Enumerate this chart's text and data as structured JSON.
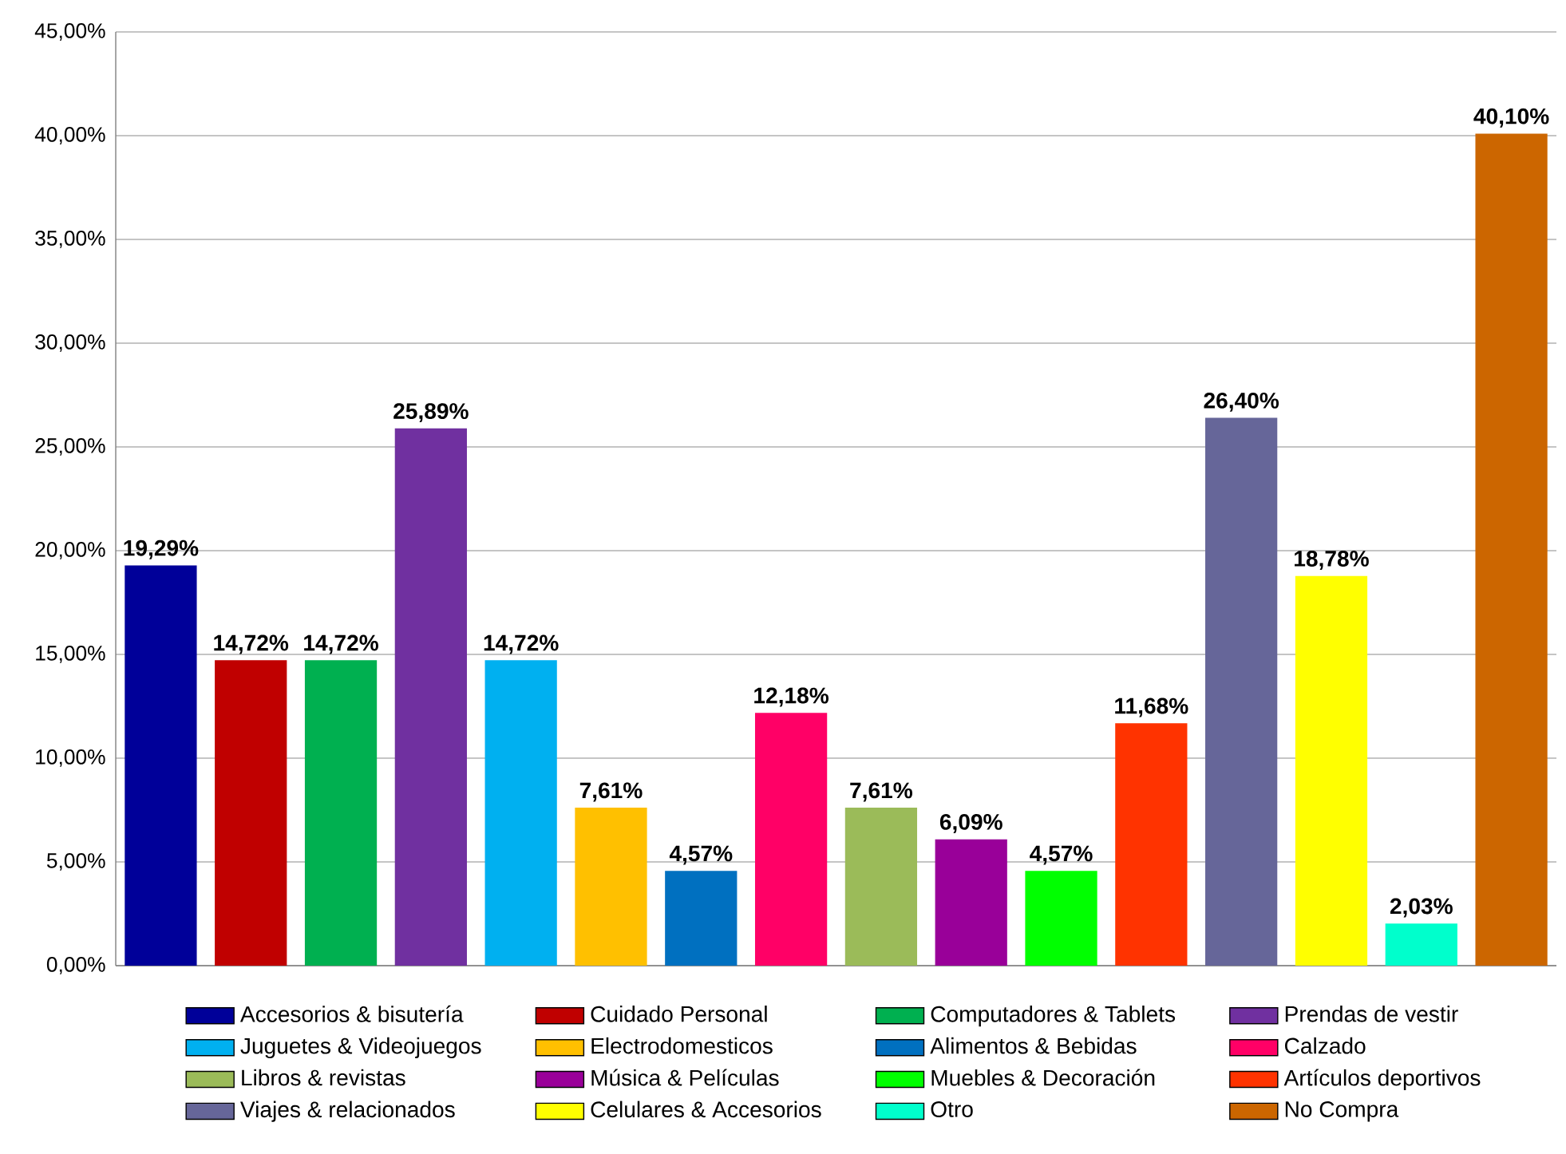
{
  "chart_data": {
    "type": "bar",
    "categories": [
      null,
      null,
      null,
      null,
      null,
      null,
      null,
      null,
      null,
      null,
      null,
      null,
      null,
      null,
      null,
      null
    ],
    "series": [
      {
        "name": "Accesorios & bisutería",
        "color": "#000099",
        "values": [
          19.29,
          null,
          null,
          null,
          null,
          null,
          null,
          null,
          null,
          null,
          null,
          null,
          null,
          null,
          null,
          null
        ],
        "value_labels": [
          "19,29%",
          null,
          null,
          null,
          null,
          null,
          null,
          null,
          null,
          null,
          null,
          null,
          null,
          null,
          null,
          null
        ]
      },
      {
        "name": "Cuidado Personal",
        "color": "#c00000",
        "values": [
          null,
          14.72,
          null,
          null,
          null,
          null,
          null,
          null,
          null,
          null,
          null,
          null,
          null,
          null,
          null,
          null
        ],
        "value_labels": [
          null,
          "14,72%",
          null,
          null,
          null,
          null,
          null,
          null,
          null,
          null,
          null,
          null,
          null,
          null,
          null,
          null
        ]
      },
      {
        "name": "Computadores & Tablets",
        "color": "#00b050",
        "values": [
          null,
          null,
          14.72,
          null,
          null,
          null,
          null,
          null,
          null,
          null,
          null,
          null,
          null,
          null,
          null,
          null
        ],
        "value_labels": [
          null,
          null,
          "14,72%",
          null,
          null,
          null,
          null,
          null,
          null,
          null,
          null,
          null,
          null,
          null,
          null,
          null
        ]
      },
      {
        "name": "Prendas de vestir",
        "color": "#7030a0",
        "values": [
          null,
          null,
          null,
          25.89,
          null,
          null,
          null,
          null,
          null,
          null,
          null,
          null,
          null,
          null,
          null,
          null
        ],
        "value_labels": [
          null,
          null,
          null,
          "25,89%",
          null,
          null,
          null,
          null,
          null,
          null,
          null,
          null,
          null,
          null,
          null,
          null
        ]
      },
      {
        "name": "Juguetes & Videojuegos",
        "color": "#00b0f0",
        "values": [
          null,
          null,
          null,
          null,
          14.72,
          null,
          null,
          null,
          null,
          null,
          null,
          null,
          null,
          null,
          null,
          null
        ],
        "value_labels": [
          null,
          null,
          null,
          null,
          "14,72%",
          null,
          null,
          null,
          null,
          null,
          null,
          null,
          null,
          null,
          null,
          null
        ]
      },
      {
        "name": "Electrodomesticos",
        "color": "#ffc000",
        "values": [
          null,
          null,
          null,
          null,
          null,
          7.61,
          null,
          null,
          null,
          null,
          null,
          null,
          null,
          null,
          null,
          null
        ],
        "value_labels": [
          null,
          null,
          null,
          null,
          null,
          "7,61%",
          null,
          null,
          null,
          null,
          null,
          null,
          null,
          null,
          null,
          null
        ]
      },
      {
        "name": "Alimentos & Bebidas",
        "color": "#0070c0",
        "values": [
          null,
          null,
          null,
          null,
          null,
          null,
          4.57,
          null,
          null,
          null,
          null,
          null,
          null,
          null,
          null,
          null
        ],
        "value_labels": [
          null,
          null,
          null,
          null,
          null,
          null,
          "4,57%",
          null,
          null,
          null,
          null,
          null,
          null,
          null,
          null,
          null
        ]
      },
      {
        "name": "Calzado",
        "color": "#ff0066",
        "values": [
          null,
          null,
          null,
          null,
          null,
          null,
          null,
          12.18,
          null,
          null,
          null,
          null,
          null,
          null,
          null,
          null
        ],
        "value_labels": [
          null,
          null,
          null,
          null,
          null,
          null,
          null,
          "12,18%",
          null,
          null,
          null,
          null,
          null,
          null,
          null,
          null
        ]
      },
      {
        "name": "Libros & revistas",
        "color": "#9bbb59",
        "values": [
          null,
          null,
          null,
          null,
          null,
          null,
          null,
          null,
          7.61,
          null,
          null,
          null,
          null,
          null,
          null,
          null
        ],
        "value_labels": [
          null,
          null,
          null,
          null,
          null,
          null,
          null,
          null,
          "7,61%",
          null,
          null,
          null,
          null,
          null,
          null,
          null
        ]
      },
      {
        "name": "Música & Películas",
        "color": "#990099",
        "values": [
          null,
          null,
          null,
          null,
          null,
          null,
          null,
          null,
          null,
          6.09,
          null,
          null,
          null,
          null,
          null,
          null
        ],
        "value_labels": [
          null,
          null,
          null,
          null,
          null,
          null,
          null,
          null,
          null,
          "6,09%",
          null,
          null,
          null,
          null,
          null,
          null
        ]
      },
      {
        "name": "Muebles & Decoración",
        "color": "#00ff00",
        "values": [
          null,
          null,
          null,
          null,
          null,
          null,
          null,
          null,
          null,
          null,
          4.57,
          null,
          null,
          null,
          null,
          null
        ],
        "value_labels": [
          null,
          null,
          null,
          null,
          null,
          null,
          null,
          null,
          null,
          null,
          "4,57%",
          null,
          null,
          null,
          null,
          null
        ]
      },
      {
        "name": "Artículos deportivos",
        "color": "#ff3300",
        "values": [
          null,
          null,
          null,
          null,
          null,
          null,
          null,
          null,
          null,
          null,
          null,
          11.68,
          null,
          null,
          null,
          null
        ],
        "value_labels": [
          null,
          null,
          null,
          null,
          null,
          null,
          null,
          null,
          null,
          null,
          null,
          "11,68%",
          null,
          null,
          null,
          null
        ]
      },
      {
        "name": "Viajes & relacionados",
        "color": "#666699",
        "values": [
          null,
          null,
          null,
          null,
          null,
          null,
          null,
          null,
          null,
          null,
          null,
          null,
          26.4,
          null,
          null,
          null
        ],
        "value_labels": [
          null,
          null,
          null,
          null,
          null,
          null,
          null,
          null,
          null,
          null,
          null,
          null,
          "26,40%",
          null,
          null,
          null
        ]
      },
      {
        "name": "Celulares & Accesorios",
        "color": "#ffff00",
        "values": [
          null,
          null,
          null,
          null,
          null,
          null,
          null,
          null,
          null,
          null,
          null,
          null,
          null,
          18.78,
          null,
          null
        ],
        "value_labels": [
          null,
          null,
          null,
          null,
          null,
          null,
          null,
          null,
          null,
          null,
          null,
          null,
          null,
          "18,78%",
          null,
          null
        ]
      },
      {
        "name": "Otro",
        "color": "#00ffcc",
        "values": [
          null,
          null,
          null,
          null,
          null,
          null,
          null,
          null,
          null,
          null,
          null,
          null,
          null,
          null,
          2.03,
          null
        ],
        "value_labels": [
          null,
          null,
          null,
          null,
          null,
          null,
          null,
          null,
          null,
          null,
          null,
          null,
          null,
          null,
          "2,03%",
          null
        ]
      },
      {
        "name": "No Compra",
        "color": "#cc6600",
        "values": [
          null,
          null,
          null,
          null,
          null,
          null,
          null,
          null,
          null,
          null,
          null,
          null,
          null,
          null,
          null,
          40.1
        ],
        "value_labels": [
          null,
          null,
          null,
          null,
          null,
          null,
          null,
          null,
          null,
          null,
          null,
          null,
          null,
          null,
          null,
          "40,10%"
        ]
      }
    ],
    "ylim": [
      0,
      45
    ],
    "yticks": [
      {
        "value": 0,
        "label": "0,00%"
      },
      {
        "value": 5,
        "label": "5,00%"
      },
      {
        "value": 10,
        "label": "10,00%"
      },
      {
        "value": 15,
        "label": "15,00%"
      },
      {
        "value": 20,
        "label": "20,00%"
      },
      {
        "value": 25,
        "label": "25,00%"
      },
      {
        "value": 30,
        "label": "30,00%"
      },
      {
        "value": 35,
        "label": "35,00%"
      },
      {
        "value": 40,
        "label": "40,00%"
      },
      {
        "value": 45,
        "label": "45,00%"
      }
    ],
    "grid": "y",
    "legend": "bottom",
    "tick_labels": "y"
  }
}
